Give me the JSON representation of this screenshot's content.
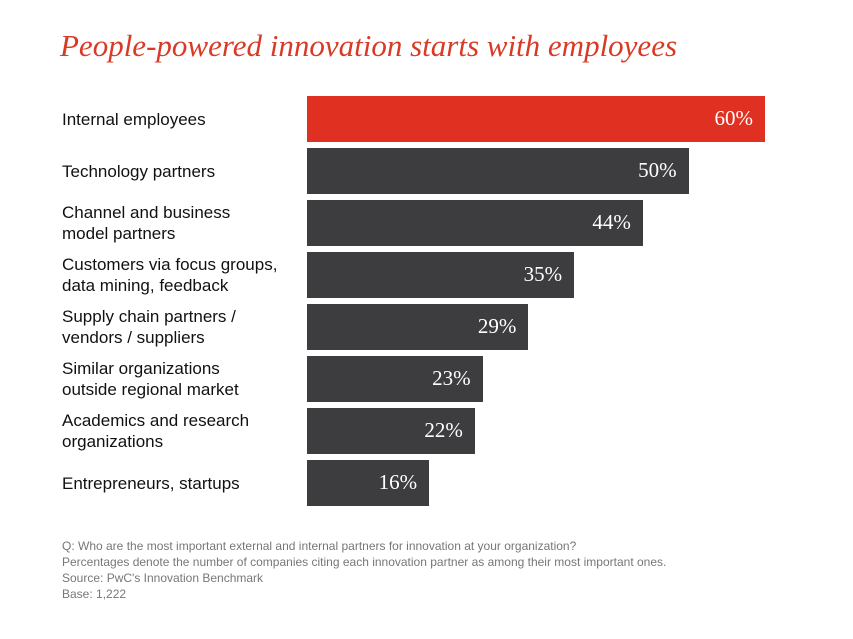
{
  "chart_data": {
    "type": "bar",
    "orientation": "horizontal",
    "title": "People-powered innovation starts with employees",
    "categories": [
      "Internal employees",
      "Technology partners",
      "Channel and business\nmodel partners",
      "Customers via focus groups,\ndata mining, feedback",
      "Supply chain partners /\nvendors / suppliers",
      "Similar organizations\noutside regional market",
      "Academics and research\norganizations",
      "Entrepreneurs, startups"
    ],
    "values": [
      60,
      50,
      44,
      35,
      29,
      23,
      22,
      16
    ],
    "value_labels": [
      "60%",
      "50%",
      "44%",
      "35%",
      "29%",
      "23%",
      "22%",
      "16%"
    ],
    "colors": [
      "#e03022",
      "#3d3d3f",
      "#3d3d3f",
      "#3d3d3f",
      "#3d3d3f",
      "#3d3d3f",
      "#3d3d3f",
      "#3d3d3f"
    ],
    "notes": [
      "Q: Who are the most important external and internal partners for innovation at your organization?",
      "Percentages denote the number of companies citing each innovation partner as among their most important ones.",
      "Source: PwC's Innovation Benchmark",
      "Base: 1,222"
    ]
  }
}
